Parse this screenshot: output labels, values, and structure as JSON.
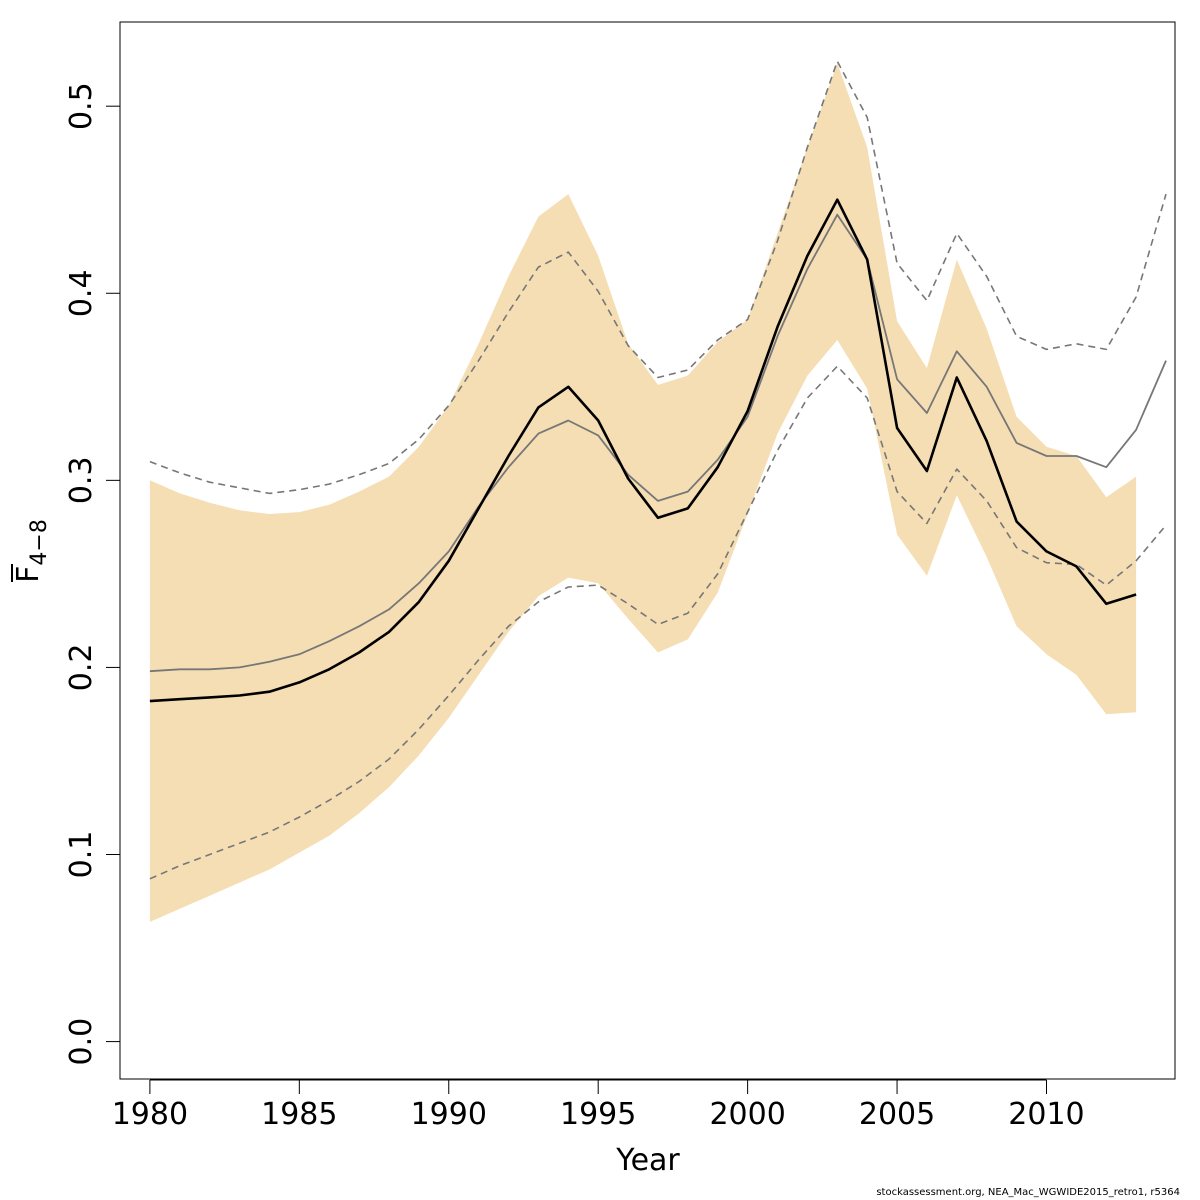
{
  "chart_data": {
    "type": "line",
    "xlabel": "Year",
    "ylabel": {
      "main": "F",
      "subscript": "4−8"
    },
    "xlim": [
      1979,
      2014.3
    ],
    "ylim": [
      -0.02,
      0.545
    ],
    "x_ticks": [
      "1980",
      "1985",
      "1990",
      "1995",
      "2000",
      "2005",
      "2010"
    ],
    "y_ticks": [
      "0.0",
      "0.1",
      "0.2",
      "0.3",
      "0.4",
      "0.5"
    ],
    "grid": false,
    "legend": "none",
    "colors": {
      "band": "#f5deb3",
      "estimate": "#000000",
      "retro": "#777777",
      "retro_ci": "#777777"
    },
    "series": [
      {
        "role": "confidence-band",
        "x": [
          1980,
          1981,
          1982,
          1983,
          1984,
          1985,
          1986,
          1987,
          1988,
          1989,
          1990,
          1991,
          1992,
          1993,
          1994,
          1995,
          1996,
          1997,
          1998,
          1999,
          2000,
          2001,
          2002,
          2003,
          2004,
          2005,
          2006,
          2007,
          2008,
          2009,
          2010,
          2011,
          2012,
          2013
        ],
        "upper": [
          0.3,
          0.293,
          0.288,
          0.284,
          0.282,
          0.283,
          0.287,
          0.294,
          0.302,
          0.318,
          0.34,
          0.373,
          0.409,
          0.441,
          0.453,
          0.42,
          0.373,
          0.351,
          0.356,
          0.374,
          0.386,
          0.432,
          0.478,
          0.523,
          0.478,
          0.385,
          0.36,
          0.418,
          0.381,
          0.334,
          0.318,
          0.313,
          0.291,
          0.302
        ],
        "lower": [
          0.064,
          0.071,
          0.078,
          0.085,
          0.092,
          0.101,
          0.11,
          0.122,
          0.136,
          0.153,
          0.173,
          0.196,
          0.219,
          0.238,
          0.248,
          0.245,
          0.226,
          0.208,
          0.215,
          0.24,
          0.282,
          0.325,
          0.356,
          0.375,
          0.349,
          0.271,
          0.249,
          0.292,
          0.259,
          0.222,
          0.207,
          0.196,
          0.175,
          0.176
        ]
      },
      {
        "role": "estimate",
        "x": [
          1980,
          1981,
          1982,
          1983,
          1984,
          1985,
          1986,
          1987,
          1988,
          1989,
          1990,
          1991,
          1992,
          1993,
          1994,
          1995,
          1996,
          1997,
          1998,
          1999,
          2000,
          2001,
          2002,
          2003,
          2004,
          2005,
          2006,
          2007,
          2008,
          2009,
          2010,
          2011,
          2012,
          2013
        ],
        "values": [
          0.182,
          0.183,
          0.184,
          0.185,
          0.187,
          0.192,
          0.199,
          0.208,
          0.219,
          0.235,
          0.257,
          0.285,
          0.313,
          0.339,
          0.35,
          0.332,
          0.301,
          0.28,
          0.285,
          0.307,
          0.337,
          0.382,
          0.42,
          0.45,
          0.418,
          0.328,
          0.305,
          0.355,
          0.321,
          0.278,
          0.262,
          0.254,
          0.234,
          0.239
        ]
      },
      {
        "role": "retrospective",
        "x": [
          1980,
          1981,
          1982,
          1983,
          1984,
          1985,
          1986,
          1987,
          1988,
          1989,
          1990,
          1991,
          1992,
          1993,
          1994,
          1995,
          1996,
          1997,
          1998,
          1999,
          2000,
          2001,
          2002,
          2003,
          2004,
          2005,
          2006,
          2007,
          2008,
          2009,
          2010,
          2011,
          2012,
          2013,
          2014
        ],
        "values": [
          0.198,
          0.199,
          0.199,
          0.2,
          0.203,
          0.207,
          0.214,
          0.222,
          0.231,
          0.245,
          0.262,
          0.286,
          0.307,
          0.325,
          0.332,
          0.324,
          0.303,
          0.289,
          0.294,
          0.311,
          0.334,
          0.377,
          0.413,
          0.442,
          0.418,
          0.354,
          0.336,
          0.369,
          0.35,
          0.32,
          0.313,
          0.313,
          0.307,
          0.327,
          0.364
        ]
      },
      {
        "role": "retrospective-upper",
        "x": [
          1980,
          1981,
          1982,
          1983,
          1984,
          1985,
          1986,
          1987,
          1988,
          1989,
          1990,
          1991,
          1992,
          1993,
          1994,
          1995,
          1996,
          1997,
          1998,
          1999,
          2000,
          2001,
          2002,
          2003,
          2004,
          2005,
          2006,
          2007,
          2008,
          2009,
          2010,
          2011,
          2012,
          2013,
          2014
        ],
        "values": [
          0.31,
          0.304,
          0.299,
          0.296,
          0.293,
          0.295,
          0.298,
          0.303,
          0.309,
          0.322,
          0.34,
          0.364,
          0.39,
          0.414,
          0.422,
          0.401,
          0.372,
          0.355,
          0.359,
          0.375,
          0.386,
          0.428,
          0.478,
          0.524,
          0.494,
          0.416,
          0.396,
          0.432,
          0.409,
          0.377,
          0.37,
          0.373,
          0.37,
          0.398,
          0.453
        ]
      },
      {
        "role": "retrospective-lower",
        "x": [
          1980,
          1981,
          1982,
          1983,
          1984,
          1985,
          1986,
          1987,
          1988,
          1989,
          1990,
          1991,
          1992,
          1993,
          1994,
          1995,
          1996,
          1997,
          1998,
          1999,
          2000,
          2001,
          2002,
          2003,
          2004,
          2005,
          2006,
          2007,
          2008,
          2009,
          2010,
          2011,
          2012,
          2013,
          2014
        ],
        "values": [
          0.087,
          0.094,
          0.1,
          0.106,
          0.112,
          0.12,
          0.129,
          0.139,
          0.151,
          0.167,
          0.185,
          0.204,
          0.222,
          0.235,
          0.243,
          0.244,
          0.234,
          0.223,
          0.229,
          0.25,
          0.283,
          0.316,
          0.344,
          0.361,
          0.344,
          0.294,
          0.277,
          0.306,
          0.289,
          0.264,
          0.256,
          0.255,
          0.244,
          0.257,
          0.276
        ]
      }
    ]
  },
  "footer": "stockassessment.org, NEA_Mac_WGWIDE2015_retro1, r5364"
}
